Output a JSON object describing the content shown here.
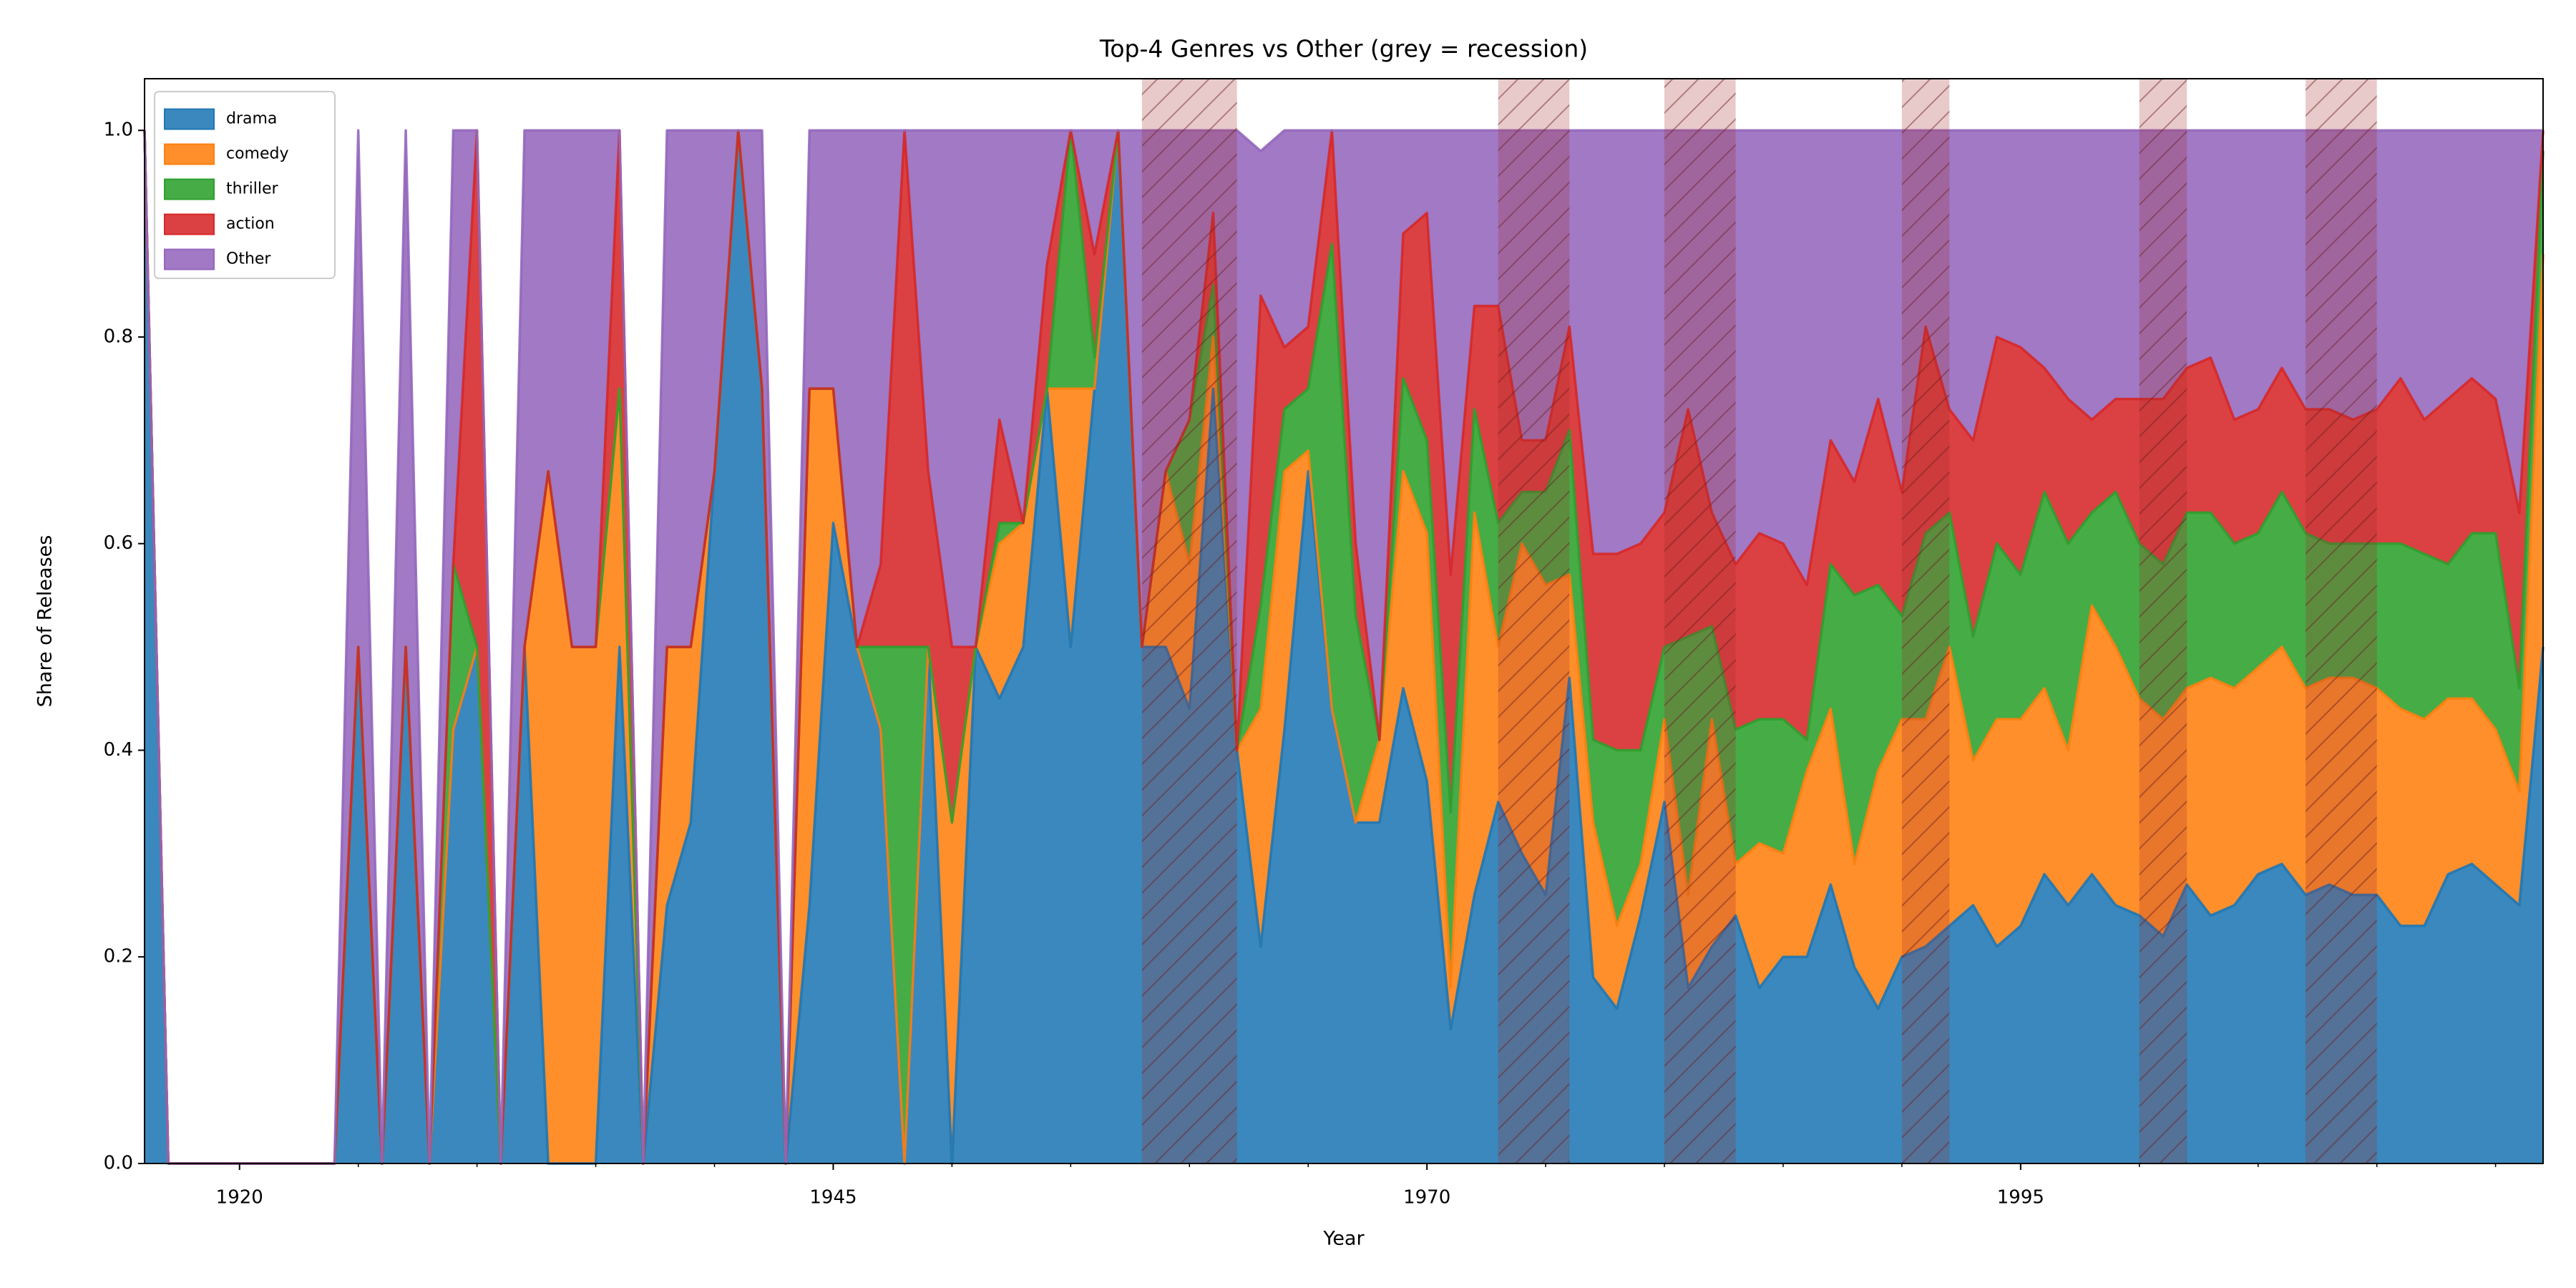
{
  "chart_data": {
    "type": "stackedarea",
    "title": "Top-4 Genres vs Other (grey = recession)",
    "xlabel": "Year",
    "ylabel": "Share of Releases",
    "x": [
      1916,
      1917,
      1918,
      1919,
      1920,
      1921,
      1922,
      1923,
      1924,
      1925,
      1926,
      1927,
      1928,
      1929,
      1930,
      1931,
      1932,
      1933,
      1934,
      1935,
      1936,
      1937,
      1938,
      1939,
      1940,
      1941,
      1942,
      1943,
      1944,
      1945,
      1946,
      1947,
      1948,
      1949,
      1950,
      1951,
      1952,
      1953,
      1954,
      1955,
      1956,
      1957,
      1958,
      1959,
      1960,
      1961,
      1962,
      1963,
      1964,
      1965,
      1966,
      1967,
      1968,
      1969,
      1970,
      1971,
      1972,
      1973,
      1974,
      1975,
      1976,
      1977,
      1978,
      1979,
      1980,
      1981,
      1982,
      1983,
      1984,
      1985,
      1986,
      1987,
      1988,
      1989,
      1990,
      1991,
      1992,
      1993,
      1994,
      1995,
      1996,
      1997,
      1998,
      1999,
      2000,
      2001,
      2002,
      2003,
      2004,
      2005,
      2006,
      2007,
      2008,
      2009,
      2010,
      2011,
      2012,
      2013,
      2014,
      2015,
      2016,
      2017
    ],
    "series": [
      {
        "name": "drama",
        "color": "#1f77b4",
        "values": [
          1,
          0,
          0,
          0,
          0,
          0,
          0,
          0,
          0,
          0.5,
          0,
          0.5,
          0,
          0.42,
          0.5,
          0,
          0.5,
          0,
          0,
          0,
          0.5,
          0,
          0.25,
          0.33,
          0.67,
          1,
          0.75,
          0,
          0.25,
          0.62,
          0.5,
          0.42,
          0,
          0.5,
          0,
          0.5,
          0.45,
          0.5,
          0.75,
          0.5,
          0.75,
          1,
          0.5,
          0.5,
          0.44,
          0.75,
          0.4,
          0.21,
          0.42,
          0.67,
          0.44,
          0.33,
          0.33,
          0.46,
          0.37,
          0.13,
          0.26,
          0.35,
          0.3,
          0.26,
          0.47,
          0.18,
          0.15,
          0.24,
          0.35,
          0.17,
          0.21,
          0.24,
          0.17,
          0.2,
          0.2,
          0.27,
          0.19,
          0.15,
          0.2,
          0.21,
          0.23,
          0.25,
          0.21,
          0.23,
          0.28,
          0.25,
          0.28,
          0.25,
          0.24,
          0.22,
          0.27,
          0.24,
          0.25,
          0.28,
          0.29,
          0.26,
          0.27,
          0.26,
          0.26,
          0.23,
          0.23,
          0.28,
          0.29,
          0.27,
          0.25,
          0.5
        ]
      },
      {
        "name": "comedy",
        "color": "#ff7f0e",
        "values": [
          0,
          0,
          0,
          0,
          0,
          0,
          0,
          0,
          0,
          0,
          0,
          0,
          0,
          0,
          0,
          0,
          0,
          0.67,
          0.5,
          0.5,
          0.25,
          0,
          0.25,
          0.17,
          0,
          0,
          0,
          0,
          0.5,
          0.13,
          0,
          0,
          0,
          0,
          0.33,
          0,
          0.15,
          0.12,
          0,
          0.25,
          0,
          0,
          0,
          0.17,
          0.14,
          0.05,
          0,
          0.23,
          0.25,
          0.02,
          0,
          0,
          0.08,
          0.21,
          0.24,
          0.04,
          0.37,
          0.15,
          0.3,
          0.3,
          0.1,
          0.15,
          0.08,
          0.05,
          0.08,
          0.09,
          0.22,
          0.05,
          0.14,
          0.1,
          0.18,
          0.17,
          0.1,
          0.23,
          0.23,
          0.22,
          0.27,
          0.14,
          0.22,
          0.2,
          0.18,
          0.15,
          0.26,
          0.25,
          0.21,
          0.21,
          0.19,
          0.23,
          0.21,
          0.2,
          0.21,
          0.2,
          0.2,
          0.21,
          0.2,
          0.21,
          0.2,
          0.17,
          0.16,
          0.15,
          0.11,
          0.38
        ]
      },
      {
        "name": "thriller",
        "color": "#2ca02c",
        "values": [
          0,
          0,
          0,
          0,
          0,
          0,
          0,
          0,
          0,
          0,
          0,
          0,
          0,
          0.16,
          0,
          0,
          0,
          0,
          0,
          0,
          0,
          0,
          0,
          0,
          0,
          0,
          0,
          0,
          0,
          0,
          0,
          0.08,
          0.5,
          0,
          0,
          0,
          0.02,
          0,
          0,
          0.25,
          0.03,
          0,
          0,
          0,
          0.14,
          0.05,
          0,
          0.1,
          0.06,
          0.06,
          0.45,
          0.2,
          0,
          0.09,
          0.09,
          0.17,
          0.1,
          0.12,
          0.05,
          0.09,
          0.14,
          0.08,
          0.17,
          0.11,
          0.07,
          0.25,
          0.09,
          0.13,
          0.12,
          0.13,
          0.03,
          0.14,
          0.26,
          0.18,
          0.1,
          0.18,
          0.13,
          0.12,
          0.17,
          0.14,
          0.19,
          0.2,
          0.09,
          0.15,
          0.15,
          0.15,
          0.17,
          0.16,
          0.14,
          0.13,
          0.15,
          0.15,
          0.13,
          0.13,
          0.14,
          0.16,
          0.16,
          0.13,
          0.16,
          0.19,
          0.1,
          0.1
        ]
      },
      {
        "name": "action",
        "color": "#d62728",
        "values": [
          0,
          0,
          0,
          0,
          0,
          0,
          0,
          0,
          0,
          0,
          0,
          0,
          0,
          0,
          0.5,
          0,
          0,
          0,
          0,
          0,
          0.25,
          0,
          0,
          0,
          0,
          0,
          0,
          0,
          0,
          0,
          0,
          0.08,
          0.5,
          0.17,
          0.17,
          0,
          0.1,
          0,
          0.12,
          0,
          0.1,
          0,
          0,
          0,
          0,
          0.07,
          0,
          0.3,
          0.06,
          0.06,
          0.11,
          0.07,
          0,
          0.14,
          0.22,
          0.23,
          0.1,
          0.21,
          0.05,
          0.05,
          0.1,
          0.18,
          0.19,
          0.2,
          0.13,
          0.22,
          0.11,
          0.16,
          0.18,
          0.17,
          0.15,
          0.12,
          0.11,
          0.18,
          0.12,
          0.2,
          0.1,
          0.19,
          0.2,
          0.22,
          0.12,
          0.14,
          0.09,
          0.09,
          0.14,
          0.16,
          0.14,
          0.15,
          0.12,
          0.12,
          0.12,
          0.12,
          0.13,
          0.12,
          0.13,
          0.16,
          0.13,
          0.16,
          0.15,
          0.13,
          0.17,
          0.02
        ]
      },
      {
        "name": "Other",
        "color": "#9467bd",
        "values": [
          0,
          0,
          0,
          0,
          0,
          0,
          0,
          0,
          0,
          0.5,
          0,
          0.5,
          0,
          0.42,
          0,
          0,
          0.5,
          0.33,
          0.5,
          0.5,
          0,
          0,
          0.5,
          0.5,
          0.33,
          0,
          0.25,
          0,
          0.25,
          0.25,
          0.5,
          0.42,
          0,
          0.33,
          0.5,
          0.5,
          0.28,
          0.38,
          0.13,
          0,
          0.12,
          0,
          0.5,
          0.33,
          0.28,
          0.08,
          0.6,
          0.14,
          0.21,
          0.19,
          0,
          0.4,
          0.59,
          0.1,
          0.08,
          0.43,
          0.17,
          0.17,
          0.3,
          0.3,
          0.19,
          0.41,
          0.41,
          0.4,
          0.37,
          0.27,
          0.37,
          0.42,
          0.39,
          0.4,
          0.44,
          0.3,
          0.34,
          0.26,
          0.35,
          0.19,
          0.27,
          0.3,
          0.2,
          0.21,
          0.23,
          0.26,
          0.28,
          0.26,
          0.26,
          0.26,
          0.23,
          0.22,
          0.28,
          0.27,
          0.23,
          0.27,
          0.27,
          0.28,
          0.27,
          0.24,
          0.28,
          0.26,
          0.24,
          0.26,
          0.37,
          0
        ]
      }
    ],
    "recessions": [
      [
        1958,
        1962
      ],
      [
        1973,
        1976
      ],
      [
        1980,
        1983
      ],
      [
        1990,
        1992
      ],
      [
        2000,
        2002
      ],
      [
        2007,
        2010
      ]
    ],
    "recession_color": "#a52a2a",
    "xlim": [
      1916,
      2017
    ],
    "xticks": [
      1920,
      1945,
      1970,
      1995
    ],
    "xminorticks": [
      1925,
      1930,
      1935,
      1940,
      1950,
      1955,
      1960,
      1965,
      1975,
      1980,
      1985,
      1990,
      2000,
      2005,
      2010,
      2015
    ],
    "ylim": [
      0,
      1.05
    ],
    "yticks": [
      {
        "value": 0,
        "label": "0.0"
      },
      0.2,
      0.4,
      0.6,
      0.8,
      {
        "value": 1,
        "label": "1.0"
      }
    ],
    "legend": "upper left",
    "grid": false
  }
}
